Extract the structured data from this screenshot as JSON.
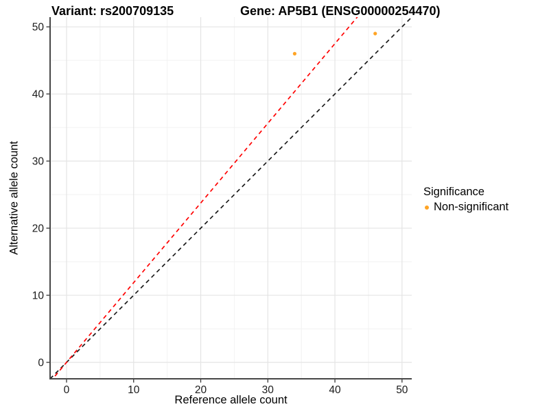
{
  "chart_data": {
    "type": "scatter",
    "title_left": "Variant: rs200709135",
    "title_right": "Gene: AP5B1 (ENSG00000254470)",
    "xlabel": "Reference allele count",
    "ylabel": "Alternative allele count",
    "axis_range": [
      0,
      50
    ],
    "xlim": [
      -2.45,
      51.45
    ],
    "ylim": [
      -2.45,
      51.45
    ],
    "xticks": [
      0,
      10,
      20,
      30,
      40,
      50
    ],
    "yticks": [
      0,
      10,
      20,
      30,
      40,
      50
    ],
    "minor_xticks": [
      5,
      15,
      25,
      35,
      45
    ],
    "minor_yticks": [
      5,
      15,
      25,
      35,
      45
    ],
    "grid": true,
    "series": [
      {
        "name": "Non-significant",
        "color": "#FFA425",
        "points": [
          {
            "x": 34,
            "y": 46
          },
          {
            "x": 46,
            "y": 49
          }
        ]
      }
    ],
    "reference_lines": [
      {
        "name": "identity-line",
        "color": "#1A1A1A",
        "style": "dashed",
        "slope": 1,
        "intercept": 0
      },
      {
        "name": "allelic-ratio-line",
        "color": "#FF0000",
        "style": "dashed",
        "slope": 1.1875,
        "intercept": 0
      }
    ],
    "legend": {
      "title": "Significance",
      "position": "right",
      "items": [
        {
          "label": "Non-significant",
          "color": "#FFA425"
        }
      ]
    }
  }
}
